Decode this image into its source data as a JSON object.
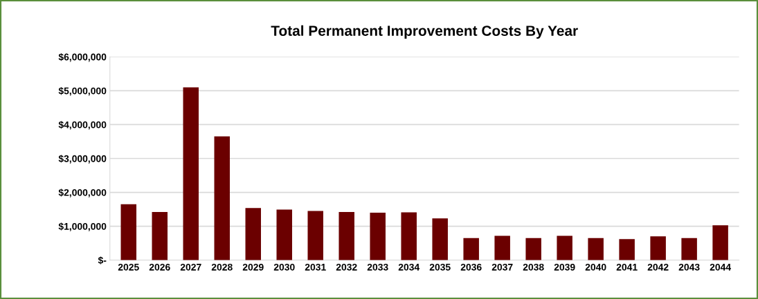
{
  "chart_data": {
    "type": "bar",
    "title": "Total Permanent Improvement Costs By Year",
    "categories": [
      "2025",
      "2026",
      "2027",
      "2028",
      "2029",
      "2030",
      "2031",
      "2032",
      "2033",
      "2034",
      "2035",
      "2036",
      "2037",
      "2038",
      "2039",
      "2040",
      "2041",
      "2042",
      "2043",
      "2044"
    ],
    "values": [
      1650000,
      1420000,
      5100000,
      3650000,
      1540000,
      1490000,
      1450000,
      1420000,
      1400000,
      1410000,
      1230000,
      650000,
      720000,
      650000,
      720000,
      650000,
      620000,
      700000,
      650000,
      1030000
    ],
    "color": "#6b0000",
    "ylim": [
      0,
      6000000
    ],
    "yticks": [
      {
        "value": 0,
        "label": "$-"
      },
      {
        "value": 1000000,
        "label": "$1,000,000"
      },
      {
        "value": 2000000,
        "label": "$2,000,000"
      },
      {
        "value": 3000000,
        "label": "$3,000,000"
      },
      {
        "value": 4000000,
        "label": "$4,000,000"
      },
      {
        "value": 5000000,
        "label": "$5,000,000"
      },
      {
        "value": 6000000,
        "label": "$6,000,000"
      }
    ],
    "grid": "y"
  }
}
